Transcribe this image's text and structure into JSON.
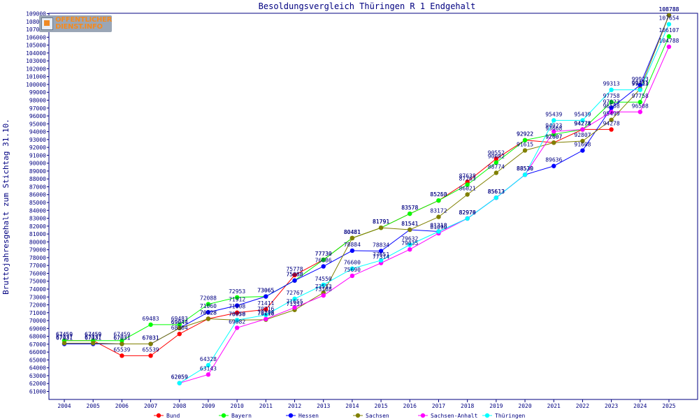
{
  "logo": {
    "line1": "OFFENTLICHER",
    "line2": "DIENST.INFO"
  },
  "chart_data": {
    "type": "line",
    "title": "Besoldungsvergleich Thüringen R 1 Endgehalt",
    "xlabel": "",
    "ylabel": "Bruttojahresgehalt zum Stichtag 31.10.",
    "ylim": [
      61000,
      109000
    ],
    "ytick_step": 1000,
    "grid": false,
    "legend_position": "bottom",
    "categories": [
      "2004",
      "2005",
      "2006",
      "2007",
      "2008",
      "2009",
      "2010",
      "2011",
      "2012",
      "2013",
      "2014",
      "2015",
      "2016",
      "2017",
      "2018",
      "2019",
      "2020",
      "2021",
      "2022",
      "2023",
      "2024",
      "2025"
    ],
    "series": [
      {
        "name": "Bund",
        "color": "#ff0000",
        "values": [
          67459,
          67459,
          65539,
          65539,
          68304,
          70228,
          71008,
          71411,
          75778,
          77730,
          80481,
          81791,
          83578,
          85253,
          87638,
          90552,
          92922,
          92607,
          94278,
          94278,
          null,
          null
        ]
      },
      {
        "name": "Bayern",
        "color": "#00ff00",
        "values": [
          67459,
          67459,
          67459,
          69483,
          69483,
          72088,
          72953,
          73065,
          75088,
          77730,
          80481,
          81791,
          83578,
          85260,
          87263,
          90082,
          92922,
          93668,
          94271,
          97758,
          97758,
          106107
        ]
      },
      {
        "name": "Hessen",
        "color": "#0000ff",
        "values": [
          67031,
          67031,
          67031,
          67031,
          69044,
          71060,
          71912,
          73065,
          75088,
          76886,
          78884,
          78834,
          81541,
          81318,
          82970,
          85613,
          88530,
          89636,
          91608,
          97023,
          99923,
          108788
        ]
      },
      {
        "name": "Sachsen",
        "color": "#808000",
        "values": [
          67137,
          67137,
          67031,
          67031,
          69044,
          70228,
          70058,
          70118,
          71357,
          73553,
          80481,
          81791,
          81541,
          83172,
          86021,
          88774,
          91615,
          92607,
          92807,
          95499,
          99431,
          108788
        ]
      },
      {
        "name": "Sachsen-Anhalt",
        "color": "#ff00ff",
        "values": [
          null,
          null,
          null,
          null,
          62059,
          63143,
          69082,
          70208,
          71655,
          73188,
          75690,
          77314,
          79035,
          81090,
          82976,
          85613,
          88530,
          94023,
          94278,
          96508,
          96508,
          104788
        ]
      },
      {
        "name": "Thüringen",
        "color": "#00ffff",
        "values": [
          null,
          null,
          null,
          null,
          62059,
          64328,
          70070,
          70716,
          72767,
          74550,
          76600,
          77651,
          79632,
          81318,
          82970,
          85613,
          88530,
          95439,
          95439,
          99313,
          99313,
          107654
        ]
      }
    ]
  }
}
